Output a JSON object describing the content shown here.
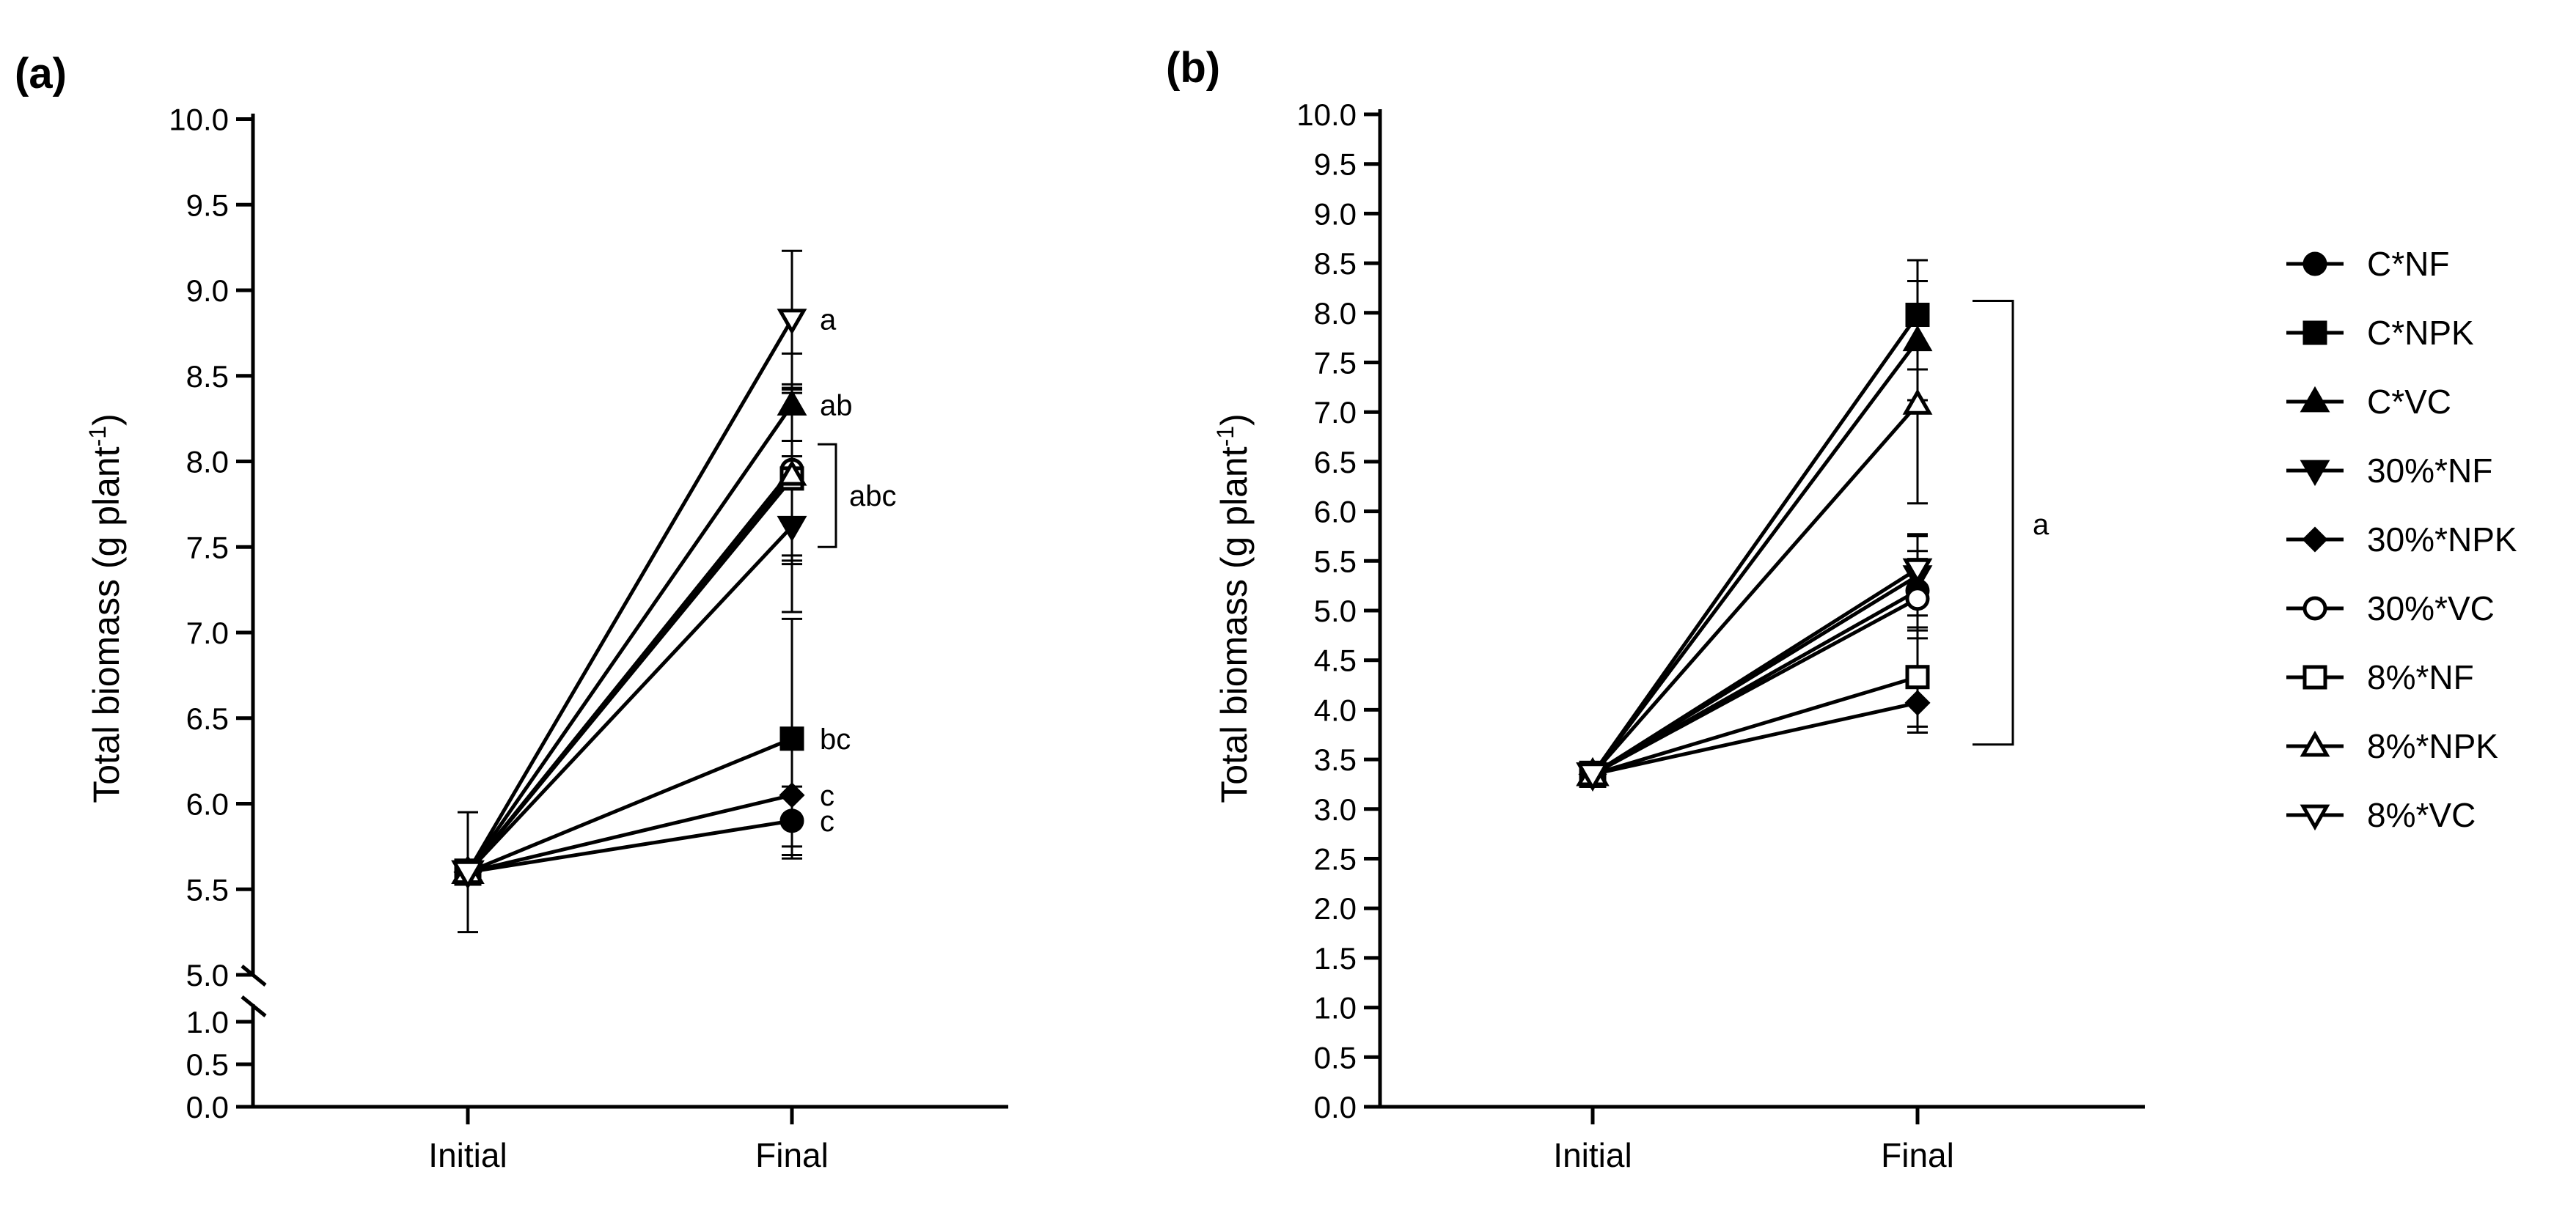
{
  "chart_data": [
    {
      "type": "line",
      "panel_label": "(a)",
      "ylabel": "Total biomass (g plant",
      "ylabel_sup": "-1",
      "ylabel_close": ")",
      "categories": [
        "Initial",
        "Final"
      ],
      "y_ticks_upper": [
        "5.0",
        "5.5",
        "6.0",
        "6.5",
        "7.0",
        "7.5",
        "8.0",
        "8.5",
        "9.0",
        "9.5",
        "10.0"
      ],
      "y_ticks_lower": [
        "0.0",
        "0.5",
        "1.0"
      ],
      "ylim_lower": [
        0,
        1
      ],
      "ylim_upper": [
        5,
        10
      ],
      "axis_break": true,
      "initial": {
        "value": 5.6,
        "error": 0.35
      },
      "series": [
        {
          "name": "C*NF",
          "marker": "circle-filled",
          "final": 5.9,
          "error": 0.2,
          "letter": "c"
        },
        {
          "name": "C*NPK",
          "marker": "square-filled",
          "final": 6.38,
          "error": 0.7,
          "letter": "bc"
        },
        {
          "name": "C*VC",
          "marker": "triangle-up-filled",
          "final": 8.33,
          "error": 0.3,
          "letter": "ab"
        },
        {
          "name": "30%*NF",
          "marker": "triangle-down-filled",
          "final": 7.62,
          "error": 0.5,
          "letter": ""
        },
        {
          "name": "30%*NPK",
          "marker": "diamond-filled",
          "final": 6.05,
          "error": 0.3,
          "letter": "c"
        },
        {
          "name": "30%*VC",
          "marker": "circle-open",
          "final": 7.95,
          "error": 0.5,
          "letter": ""
        },
        {
          "name": "8%*NF",
          "marker": "square-open",
          "final": 7.9,
          "error": 0.5,
          "letter": ""
        },
        {
          "name": "8%*NPK",
          "marker": "triangle-up-open",
          "final": 7.92,
          "error": 0.5,
          "letter": ""
        },
        {
          "name": "8%*VC",
          "marker": "triangle-down-open",
          "final": 8.83,
          "error": 0.4,
          "letter": "a"
        }
      ],
      "bracket": {
        "label": "abc",
        "from": 7.5,
        "to": 8.1
      }
    },
    {
      "type": "line",
      "panel_label": "(b)",
      "ylabel": "Total biomass (g plant",
      "ylabel_sup": "-1",
      "ylabel_close": ")",
      "categories": [
        "Initial",
        "Final"
      ],
      "y_ticks": [
        "0.0",
        "0.5",
        "1.0",
        "1.5",
        "2.0",
        "2.5",
        "3.0",
        "3.5",
        "4.0",
        "4.5",
        "5.0",
        "5.5",
        "6.0",
        "6.5",
        "7.0",
        "7.5",
        "8.0",
        "8.5",
        "9.0",
        "9.5",
        "10.0"
      ],
      "ylim": [
        0,
        10
      ],
      "initial": {
        "value": 3.35,
        "error": 0.12
      },
      "series": [
        {
          "name": "C*NF",
          "marker": "circle-filled",
          "final": 5.2,
          "error": 0.4
        },
        {
          "name": "C*NPK",
          "marker": "square-filled",
          "final": 7.98,
          "error": 0.55
        },
        {
          "name": "C*VC",
          "marker": "triangle-up-filled",
          "final": 7.72,
          "error": 0.6
        },
        {
          "name": "30%*NF",
          "marker": "triangle-down-filled",
          "final": 5.35,
          "error": 0.4
        },
        {
          "name": "30%*NPK",
          "marker": "diamond-filled",
          "final": 4.07,
          "error": 0.3
        },
        {
          "name": "30%*VC",
          "marker": "circle-open",
          "final": 5.12,
          "error": 0.4
        },
        {
          "name": "8%*NF",
          "marker": "square-open",
          "final": 4.33,
          "error": 0.5
        },
        {
          "name": "8%*NPK",
          "marker": "triangle-up-open",
          "final": 7.08,
          "error": 1.0
        },
        {
          "name": "8%*VC",
          "marker": "triangle-down-open",
          "final": 5.42,
          "error": 0.35
        }
      ],
      "bracket": {
        "label": "a",
        "from": 3.65,
        "to": 8.12
      }
    }
  ],
  "legend": {
    "position": "right",
    "entries": [
      {
        "name": "C*NF",
        "marker": "circle-filled"
      },
      {
        "name": "C*NPK",
        "marker": "square-filled"
      },
      {
        "name": "C*VC",
        "marker": "triangle-up-filled"
      },
      {
        "name": "30%*NF",
        "marker": "triangle-down-filled"
      },
      {
        "name": "30%*NPK",
        "marker": "diamond-filled"
      },
      {
        "name": "30%*VC",
        "marker": "circle-open"
      },
      {
        "name": "8%*NF",
        "marker": "square-open"
      },
      {
        "name": "8%*NPK",
        "marker": "triangle-up-open"
      },
      {
        "name": "8%*VC",
        "marker": "triangle-down-open"
      }
    ]
  }
}
